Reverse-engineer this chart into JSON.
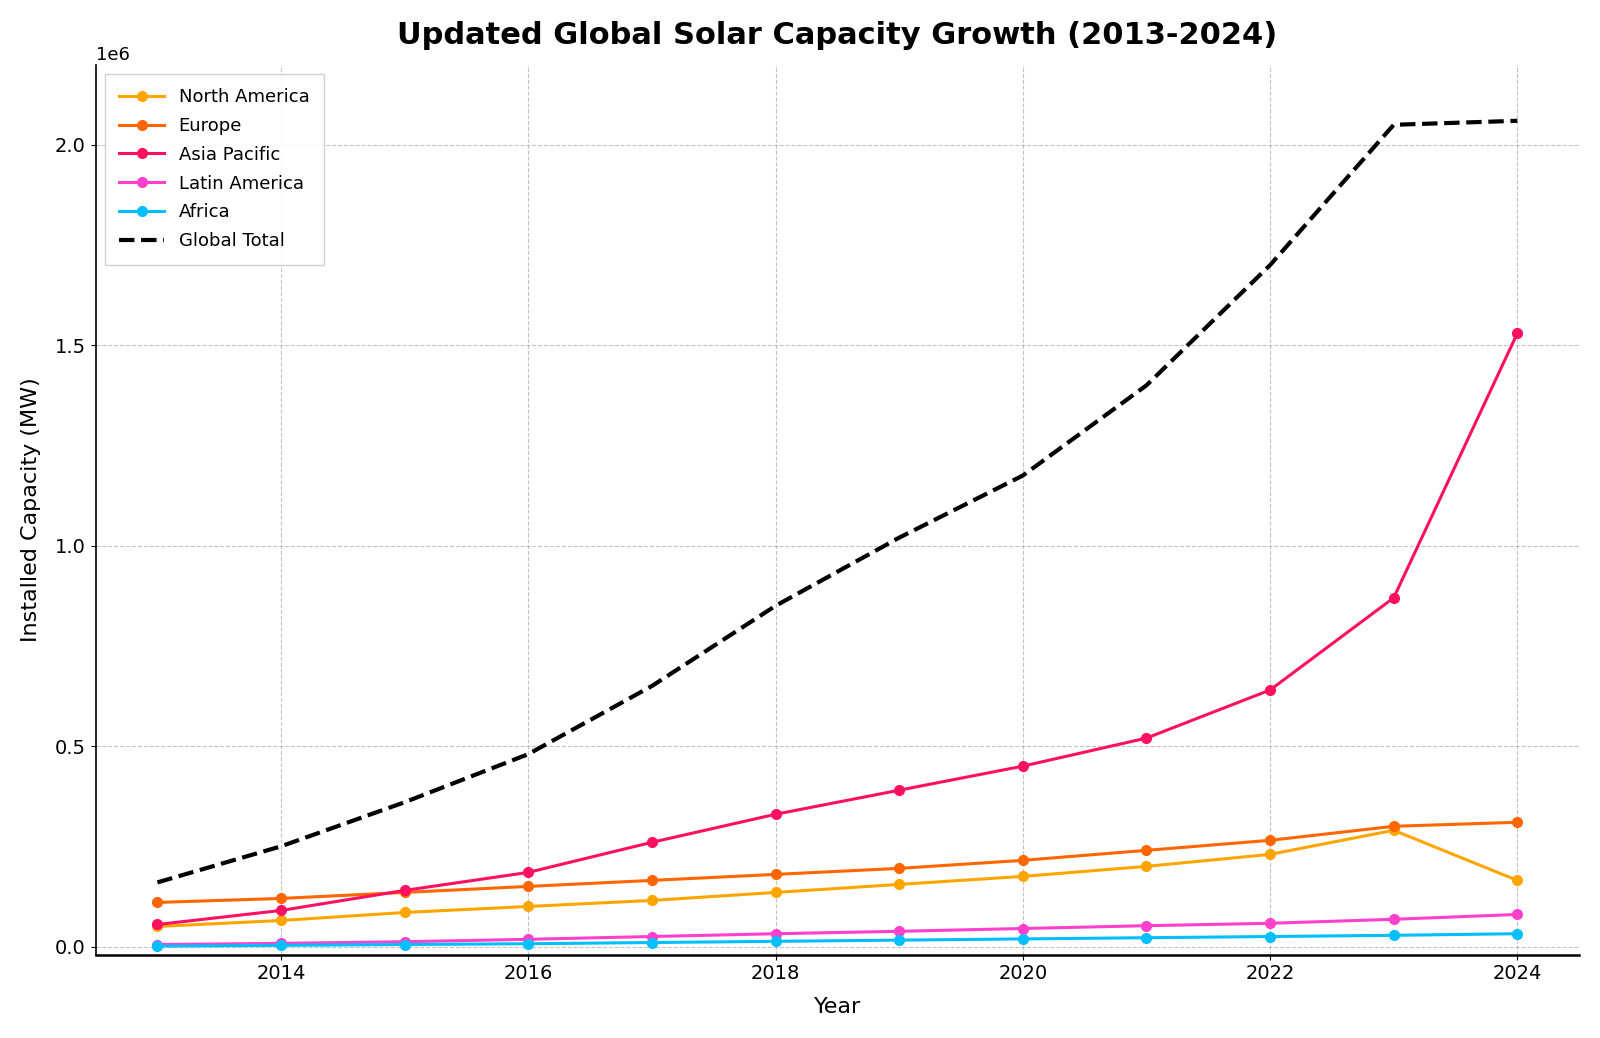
{
  "title": "Updated Global Solar Capacity Growth (2013-2024)",
  "xlabel": "Year",
  "ylabel": "Installed Capacity (MW)",
  "years": [
    2013,
    2014,
    2015,
    2016,
    2017,
    2018,
    2019,
    2020,
    2021,
    2022,
    2023,
    2024
  ],
  "north_america": [
    50000,
    65000,
    85000,
    100000,
    115000,
    135000,
    155000,
    175000,
    200000,
    230000,
    290000,
    165000
  ],
  "europe": [
    110000,
    120000,
    135000,
    150000,
    165000,
    180000,
    195000,
    215000,
    240000,
    265000,
    300000,
    310000
  ],
  "asia_pacific": [
    55000,
    90000,
    140000,
    185000,
    260000,
    330000,
    390000,
    450000,
    520000,
    640000,
    870000,
    1530000
  ],
  "latin_america": [
    5000,
    8000,
    12000,
    18000,
    25000,
    32000,
    38000,
    45000,
    52000,
    58000,
    68000,
    80000
  ],
  "africa": [
    1000,
    3000,
    5000,
    7000,
    10000,
    13000,
    16000,
    19000,
    22000,
    25000,
    28000,
    32000
  ],
  "global_total": [
    160000,
    250000,
    360000,
    480000,
    650000,
    850000,
    1020000,
    1175000,
    1400000,
    1700000,
    2050000,
    2060000
  ],
  "colors": {
    "north_america": "#FFA500",
    "europe": "#FF6600",
    "asia_pacific": "#FF1060",
    "latin_america": "#FF40CC",
    "africa": "#00BFFF",
    "global_total": "#000000"
  },
  "background_color": "#ffffff",
  "grid_color": "#aaaaaa",
  "figsize": [
    16.0,
    10.38
  ],
  "dpi": 100
}
